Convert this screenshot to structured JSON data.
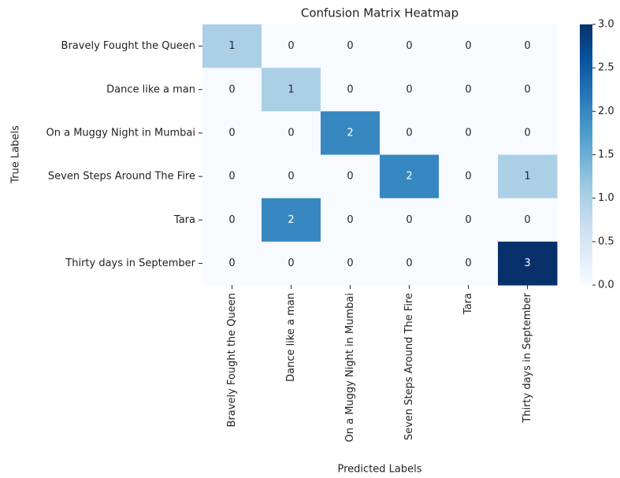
{
  "chart_data": {
    "type": "heatmap",
    "title": "Confusion Matrix Heatmap",
    "x_label": "Predicted Labels",
    "y_label": "True Labels",
    "x_categories": [
      "Bravely Fought the Queen",
      "Dance like a man",
      "On a Muggy Night in Mumbai",
      "Seven Steps Around The Fire",
      "Tara",
      "Thirty days in September"
    ],
    "y_categories": [
      "Bravely Fought the Queen",
      "Dance like a man",
      "On a Muggy Night in Mumbai",
      "Seven Steps Around The Fire",
      "Tara",
      "Thirty days in September"
    ],
    "values": [
      [
        1,
        0,
        0,
        0,
        0,
        0
      ],
      [
        0,
        1,
        0,
        0,
        0,
        0
      ],
      [
        0,
        0,
        2,
        0,
        0,
        0
      ],
      [
        0,
        0,
        0,
        2,
        0,
        1
      ],
      [
        0,
        2,
        0,
        0,
        0,
        0
      ],
      [
        0,
        0,
        0,
        0,
        0,
        3
      ]
    ],
    "colormap": "Blues",
    "colors": [
      "#f7fbff",
      "#deebf7",
      "#c6dbef",
      "#9ecae1",
      "#6baed6",
      "#4292c6",
      "#2171b5",
      "#08519c",
      "#08306b"
    ],
    "clim": [
      0,
      3
    ],
    "cticks": [
      {
        "value": 0,
        "label": "0.0"
      },
      {
        "value": 0.5,
        "label": "0.5"
      },
      {
        "value": 1,
        "label": "1.0"
      },
      {
        "value": 1.5,
        "label": "1.5"
      },
      {
        "value": 2,
        "label": "2.0"
      },
      {
        "value": 2.5,
        "label": "2.5"
      },
      {
        "value": 3,
        "label": "3.0"
      }
    ]
  }
}
